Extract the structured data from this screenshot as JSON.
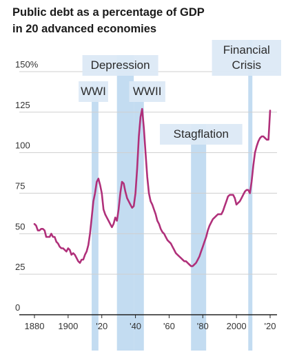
{
  "chart_data": {
    "type": "line",
    "title_lines": [
      "Public debt as a percentage of GDP",
      "in 20 advanced economies"
    ],
    "x_range": [
      1880,
      2021
    ],
    "ylim": [
      0,
      150
    ],
    "x_ticks": [
      {
        "value": 1880,
        "label": "1880"
      },
      {
        "value": 1900,
        "label": "1900"
      },
      {
        "value": 1920,
        "label": "'20"
      },
      {
        "value": 1940,
        "label": "'40"
      },
      {
        "value": 1960,
        "label": "'60"
      },
      {
        "value": 1980,
        "label": "'80"
      },
      {
        "value": 2000,
        "label": "2000"
      },
      {
        "value": 2020,
        "label": "'20"
      }
    ],
    "y_ticks": [
      {
        "value": 0,
        "label": "0"
      },
      {
        "value": 25,
        "label": "25"
      },
      {
        "value": 50,
        "label": "50"
      },
      {
        "value": 75,
        "label": "75"
      },
      {
        "value": 100,
        "label": "100"
      },
      {
        "value": 125,
        "label": "125"
      },
      {
        "value": 150,
        "label": "150%"
      }
    ],
    "grid": true,
    "line_color": "#b0307a",
    "band_color": "#b8d6ee",
    "band_label_bg": "#dce9f6",
    "periods": [
      {
        "label": [
          "WWI"
        ],
        "start": 1914,
        "end": 1918,
        "label_center": 1915,
        "label_level": "low"
      },
      {
        "label": [
          "Depression"
        ],
        "start": 1929,
        "end": 1939,
        "label_center": 1931,
        "label_level": "high"
      },
      {
        "label": [
          "WWII"
        ],
        "start": 1939,
        "end": 1945,
        "label_center": 1947,
        "label_level": "low"
      },
      {
        "label": [
          "Stagflation"
        ],
        "start": 1973,
        "end": 1982,
        "label_center": 1979,
        "label_level": "mid"
      },
      {
        "label": [
          "Financial",
          "Crisis"
        ],
        "start": 2007,
        "end": 2009,
        "label_center": 2006,
        "label_level": "top"
      }
    ],
    "series": [
      {
        "x": [
          1880,
          1881,
          1882,
          1883,
          1884,
          1885,
          1886,
          1887,
          1888,
          1889,
          1890,
          1891,
          1892,
          1893,
          1894,
          1895,
          1896,
          1897,
          1898,
          1899,
          1900,
          1901,
          1902,
          1903,
          1904,
          1905,
          1906,
          1907,
          1908,
          1909,
          1910,
          1911,
          1912,
          1913,
          1914,
          1915,
          1916,
          1917,
          1918,
          1919,
          1920,
          1921,
          1922,
          1923,
          1924,
          1925,
          1926,
          1927,
          1928,
          1929,
          1930,
          1931,
          1932,
          1933,
          1934,
          1935,
          1936,
          1937,
          1938,
          1939,
          1940,
          1941,
          1942,
          1943,
          1944,
          1945,
          1946,
          1947,
          1948,
          1949,
          1950,
          1951,
          1952,
          1953,
          1954,
          1955,
          1956,
          1957,
          1958,
          1959,
          1960,
          1961,
          1962,
          1963,
          1964,
          1965,
          1966,
          1967,
          1968,
          1969,
          1970,
          1971,
          1972,
          1973,
          1974,
          1975,
          1976,
          1977,
          1978,
          1979,
          1980,
          1981,
          1982,
          1983,
          1984,
          1985,
          1986,
          1987,
          1988,
          1989,
          1990,
          1991,
          1992,
          1993,
          1994,
          1995,
          1996,
          1997,
          1998,
          1999,
          2000,
          2001,
          2002,
          2003,
          2004,
          2005,
          2006,
          2007,
          2008,
          2009,
          2010,
          2011,
          2012,
          2013,
          2014,
          2015,
          2016,
          2017,
          2018,
          2019,
          2020
        ],
        "y": [
          56,
          55,
          52,
          52,
          53,
          53,
          52,
          48,
          48,
          48,
          50,
          48,
          48,
          45,
          44,
          42,
          41,
          41,
          40,
          39,
          41,
          40,
          37,
          38,
          37,
          35,
          33,
          32,
          34,
          34,
          37,
          39,
          43,
          50,
          60,
          70,
          75,
          82,
          84,
          80,
          75,
          65,
          62,
          60,
          58,
          56,
          54,
          56,
          60,
          58,
          65,
          75,
          82,
          81,
          76,
          72,
          70,
          68,
          66,
          67,
          75,
          90,
          110,
          122,
          127,
          115,
          100,
          85,
          75,
          70,
          68,
          65,
          62,
          58,
          56,
          53,
          51,
          50,
          48,
          46,
          45,
          44,
          42,
          40,
          38,
          37,
          36,
          35,
          34,
          33,
          33,
          32,
          31,
          30,
          30,
          31,
          32,
          34,
          36,
          39,
          42,
          45,
          48,
          52,
          55,
          57,
          59,
          60,
          61,
          62,
          62,
          62,
          64,
          67,
          70,
          73,
          74,
          74,
          74,
          72,
          68,
          69,
          70,
          72,
          74,
          76,
          77,
          77,
          75,
          82,
          92,
          100,
          104,
          107,
          109,
          110,
          110,
          109,
          108,
          108,
          126
        ]
      }
    ]
  }
}
